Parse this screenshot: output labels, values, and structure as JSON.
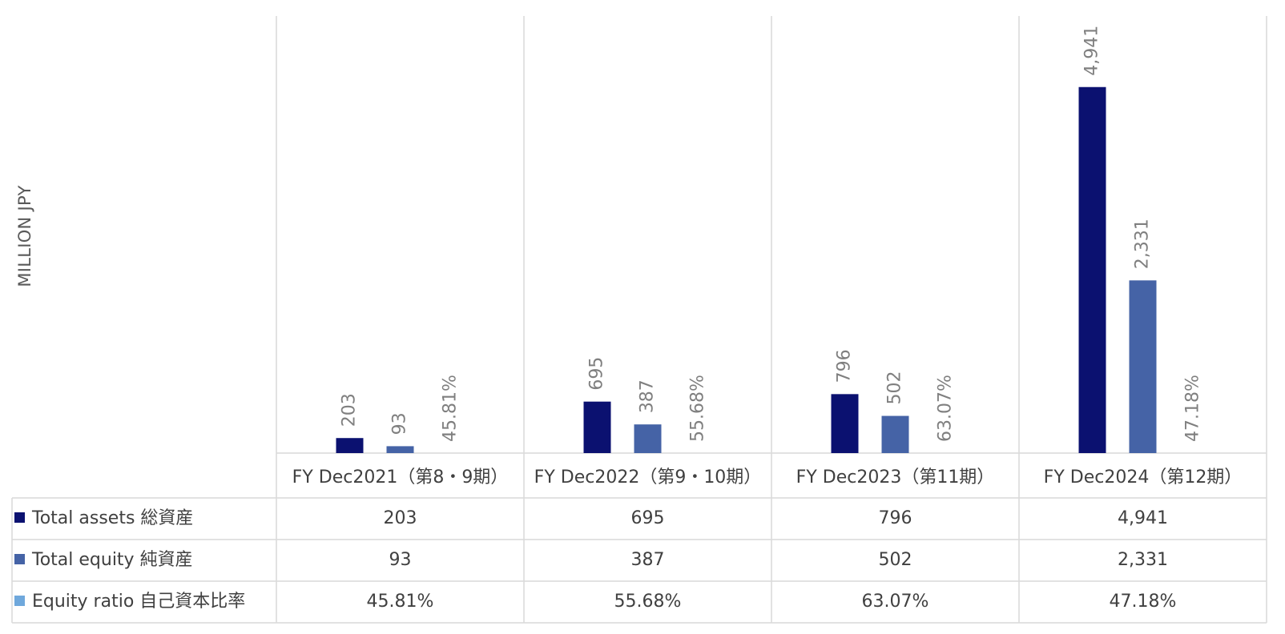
{
  "chart_data": {
    "type": "bar",
    "ylabel": "MILLION JPY",
    "categories": [
      "FY Dec2021（第8・9期）",
      "FY Dec2022（第9・10期）",
      "FY Dec2023（第11期）",
      "FY Dec2024（第12期）"
    ],
    "ylim": [
      0,
      5900
    ],
    "grid": false,
    "legend": "data-table",
    "series": [
      {
        "name": "Total assets 総資産",
        "color": "#0b1170",
        "values": [
          203,
          695,
          796,
          4941
        ],
        "labels": [
          "203",
          "695",
          "796",
          "4,941"
        ]
      },
      {
        "name": "Total equity 純資産",
        "color": "#4563a6",
        "values": [
          93,
          387,
          502,
          2331
        ],
        "labels": [
          "93",
          "387",
          "502",
          "2,331"
        ]
      },
      {
        "name": "Equity ratio 自己資本比率",
        "color": "#6fa8dc",
        "values": [
          45.81,
          55.68,
          63.07,
          47.18
        ],
        "labels": [
          "45.81%",
          "55.68%",
          "63.07%",
          "47.18%"
        ],
        "plotted": false
      }
    ]
  }
}
